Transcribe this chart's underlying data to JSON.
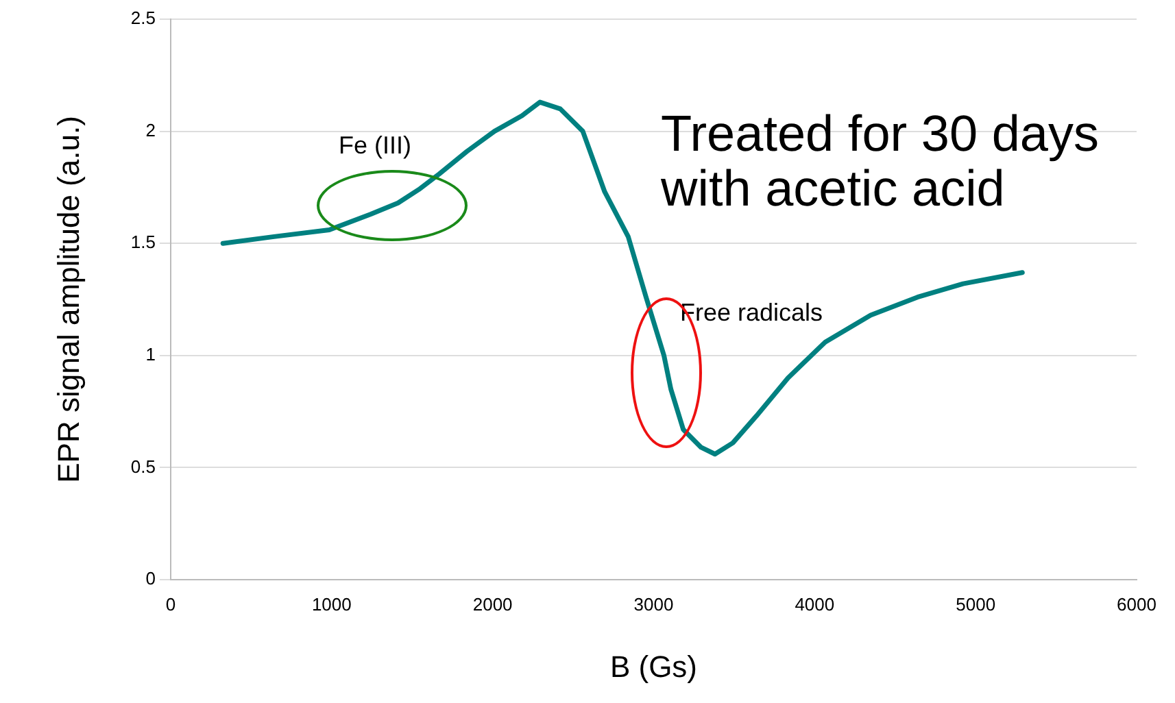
{
  "chart_data": {
    "type": "line",
    "xlabel": "B (Gs)",
    "ylabel": "EPR signal amplitude (a.u.)",
    "x": [
      325,
      642,
      985,
      1241,
      1412,
      1541,
      1669,
      1840,
      2011,
      2183,
      2294,
      2420,
      2560,
      2696,
      2842,
      2953,
      3064,
      3107,
      3184,
      3295,
      3381,
      3492,
      3638,
      3835,
      4066,
      4348,
      4639,
      4922,
      5290
    ],
    "series": [
      {
        "color": "#008080",
        "values": [
          1.5,
          1.53,
          1.56,
          1.63,
          1.68,
          1.74,
          1.81,
          1.91,
          2.0,
          2.07,
          2.13,
          2.1,
          2.0,
          1.73,
          1.53,
          1.26,
          1.0,
          0.85,
          0.67,
          0.59,
          0.56,
          0.61,
          0.73,
          0.9,
          1.06,
          1.18,
          1.26,
          1.32,
          1.37
        ]
      }
    ],
    "xlim": [
      0,
      6000
    ],
    "xticks": [
      0,
      1000,
      2000,
      3000,
      4000,
      5000,
      6000
    ],
    "ylim": [
      0,
      2.5
    ],
    "yticks": [
      0,
      0.5,
      1,
      1.5,
      2,
      2.5
    ],
    "grid": "y",
    "legend": false,
    "marker": "none",
    "line_style": "solid",
    "annotations": [
      "Fe (III)",
      "Free radicals",
      "Treated for 30 days\nwith acetic acid"
    ]
  }
}
